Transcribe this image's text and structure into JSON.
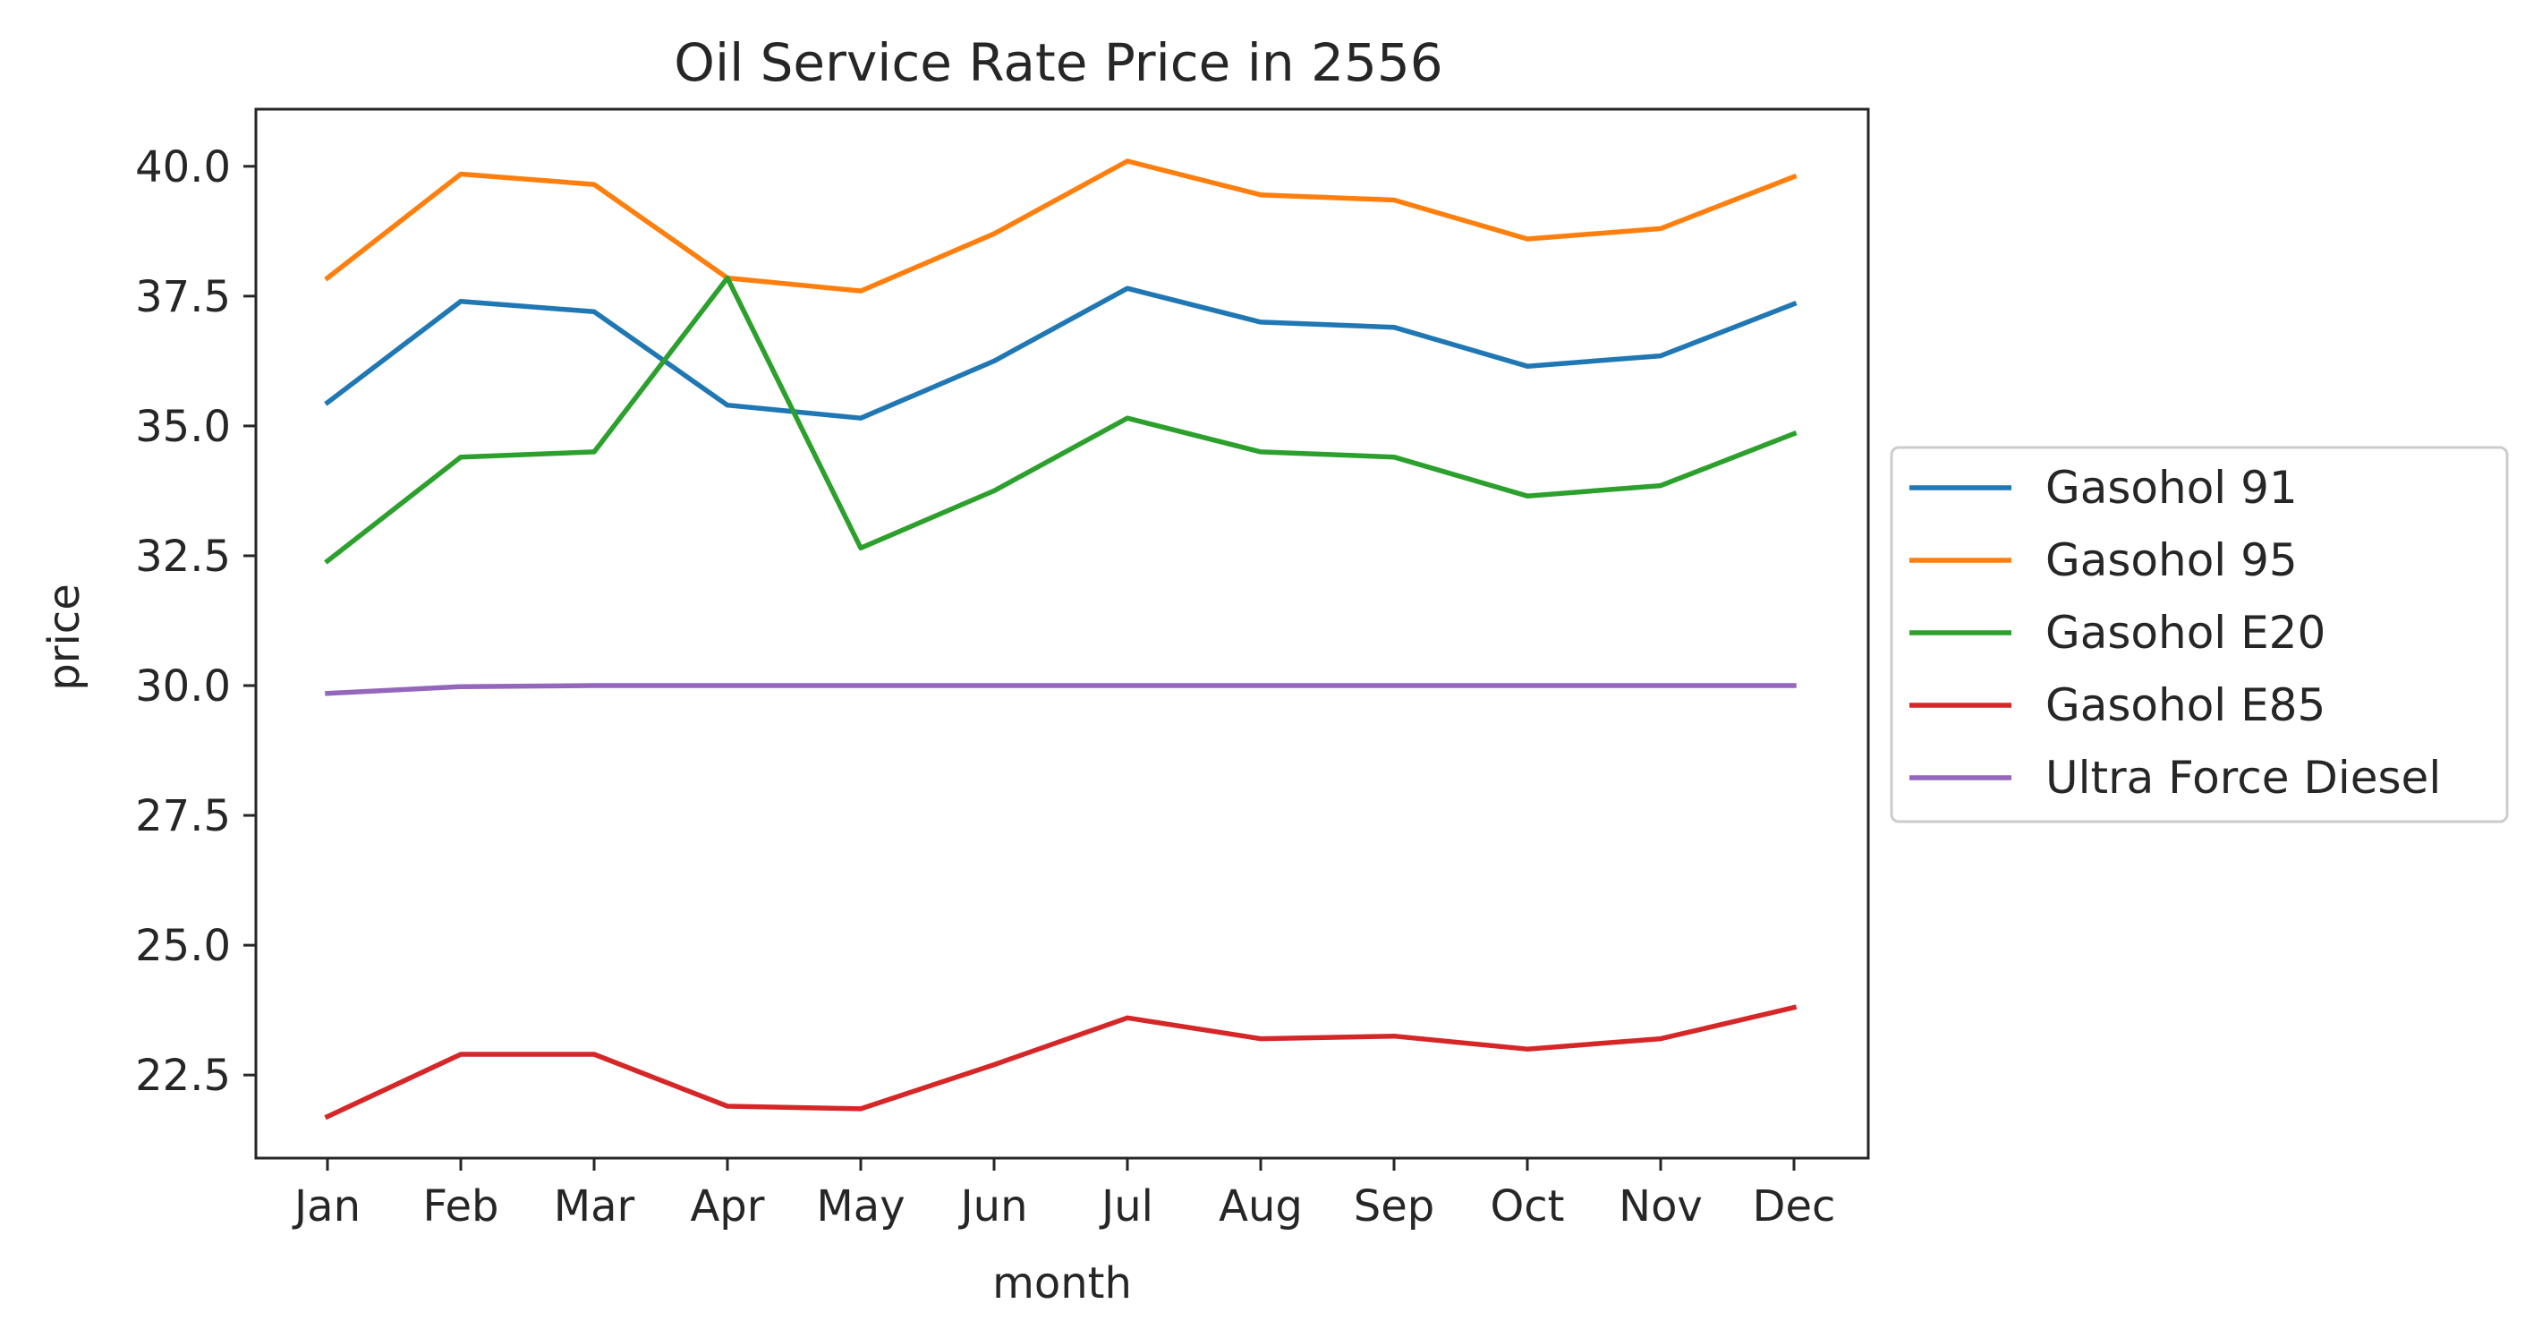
{
  "chart_data": {
    "type": "line",
    "title": "Oil Service Rate Price in 2556",
    "xlabel": "month",
    "ylabel": "price",
    "categories": [
      "Jan",
      "Feb",
      "Mar",
      "Apr",
      "May",
      "Jun",
      "Jul",
      "Aug",
      "Sep",
      "Oct",
      "Nov",
      "Dec"
    ],
    "ylim": [
      20.9,
      41.1
    ],
    "yticks": [
      22.5,
      25.0,
      27.5,
      30.0,
      32.5,
      35.0,
      37.5,
      40.0
    ],
    "ytick_labels": [
      "22.5",
      "25.0",
      "27.5",
      "30.0",
      "32.5",
      "35.0",
      "37.5",
      "40.0"
    ],
    "grid": false,
    "legend_position": "center-right outside",
    "series": [
      {
        "name": "Gasohol 91",
        "color": "#1f77b4",
        "values": [
          35.45,
          37.4,
          37.2,
          35.4,
          35.15,
          36.25,
          37.65,
          37.0,
          36.9,
          36.15,
          36.35,
          37.35
        ]
      },
      {
        "name": "Gasohol 95",
        "color": "#ff7f0e",
        "values": [
          37.85,
          39.85,
          39.65,
          37.85,
          37.6,
          38.7,
          40.1,
          39.45,
          39.35,
          38.6,
          38.8,
          39.8
        ]
      },
      {
        "name": "Gasohol E20",
        "color": "#2ca02c",
        "values": [
          32.4,
          34.4,
          34.5,
          37.85,
          32.65,
          33.75,
          35.15,
          34.5,
          34.4,
          33.65,
          33.85,
          34.85
        ]
      },
      {
        "name": "Gasohol E85",
        "color": "#d62728",
        "values": [
          21.7,
          22.9,
          22.9,
          21.9,
          21.85,
          22.7,
          23.6,
          23.2,
          23.25,
          23.0,
          23.2,
          23.8
        ]
      },
      {
        "name": "Ultra Force Diesel",
        "color": "#9467bd",
        "values": [
          29.85,
          29.98,
          30.0,
          30.0,
          30.0,
          30.0,
          30.0,
          30.0,
          30.0,
          30.0,
          30.0,
          30.0
        ]
      }
    ]
  }
}
